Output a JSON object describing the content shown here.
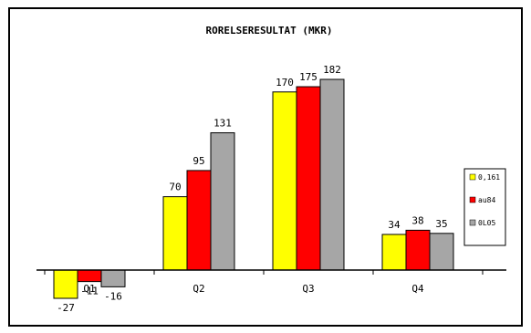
{
  "chart_data": {
    "type": "bar",
    "title": "RORELSERESULTAT (MKR)",
    "xlabel": "",
    "ylabel": "",
    "categories": [
      "Q1",
      "Q2",
      "Q3",
      "Q4"
    ],
    "series": [
      {
        "name": "0,161",
        "color": "#ffff00",
        "values": [
          -27,
          70,
          170,
          34
        ]
      },
      {
        "name": "au84",
        "color": "#ff0000",
        "values": [
          -11,
          95,
          175,
          38
        ]
      },
      {
        "name": "0L05",
        "color": "#a6a6a6",
        "values": [
          -16,
          131,
          182,
          35
        ]
      }
    ],
    "value_labels": [
      [
        "-27",
        "70",
        "170",
        "34"
      ],
      [
        "-11",
        "95",
        "175",
        "38"
      ],
      [
        "-16",
        "131",
        "182",
        "35"
      ]
    ],
    "ylim": [
      -35,
      200
    ],
    "grid": false,
    "legend": "right"
  }
}
